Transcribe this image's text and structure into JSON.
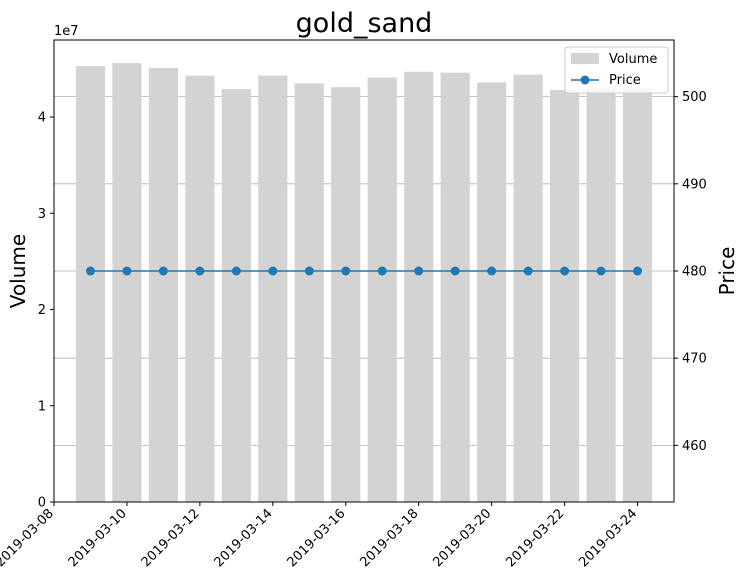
{
  "chart_data": {
    "type": "bar+line",
    "title": "gold_sand",
    "y_multiplier_label": "1e7",
    "xlabel": "",
    "ylabel_left": "Volume",
    "ylabel_right": "Price",
    "dates": [
      "2019-03-09",
      "2019-03-10",
      "2019-03-11",
      "2019-03-12",
      "2019-03-13",
      "2019-03-14",
      "2019-03-15",
      "2019-03-16",
      "2019-03-17",
      "2019-03-18",
      "2019-03-19",
      "2019-03-20",
      "2019-03-21",
      "2019-03-22",
      "2019-03-23",
      "2019-03-24"
    ],
    "x_ticks": [
      "2019-03-08",
      "2019-03-10",
      "2019-03-12",
      "2019-03-14",
      "2019-03-16",
      "2019-03-18",
      "2019-03-20",
      "2019-03-22",
      "2019-03-24"
    ],
    "x_range": [
      "2019-03-08",
      "2019-03-25"
    ],
    "series": [
      {
        "name": "Volume",
        "type": "bar",
        "axis": "left",
        "color": "#d3d3d3",
        "values": [
          45300000,
          45600000,
          45100000,
          44300000,
          42900000,
          44300000,
          43500000,
          43100000,
          44100000,
          44700000,
          44600000,
          43600000,
          44400000,
          42800000,
          43000000,
          43000000
        ]
      },
      {
        "name": "Price",
        "type": "line",
        "axis": "left-right",
        "color": "#1f77b4",
        "values": [
          480,
          480,
          480,
          480,
          480,
          480,
          480,
          480,
          480,
          480,
          480,
          480,
          480,
          480,
          480,
          480
        ]
      }
    ],
    "ylim_left": [
      0,
      48000000
    ],
    "yticks_left": [
      0,
      1,
      2,
      3,
      4
    ],
    "ylim_right": [
      453.5,
      506.5
    ],
    "yticks_right": [
      460,
      470,
      480,
      490,
      500
    ],
    "grid": "horizontal on right axis",
    "legend_position": "upper-right"
  }
}
